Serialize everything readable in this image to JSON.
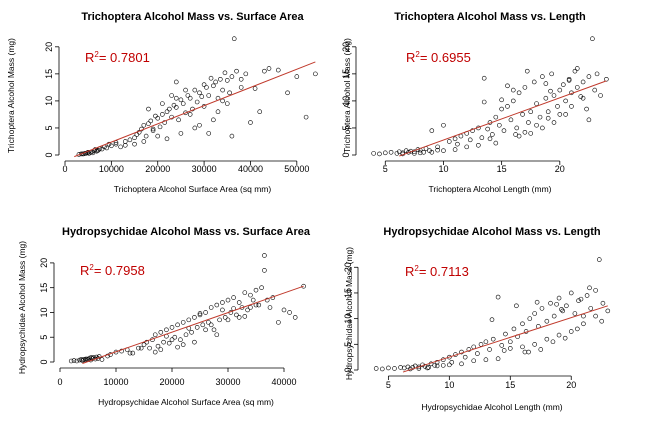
{
  "chart_data": [
    {
      "type": "scatter",
      "title": "Trichoptera Alcohol Mass vs. Surface Area",
      "xlabel": "Trichoptera Alcohol Surface Area (sq mm)",
      "ylabel": "Trichoptera Alcohol Mass (mg)",
      "xlim": [
        0,
        55000
      ],
      "ylim": [
        0,
        22
      ],
      "xticks": [
        0,
        10000,
        20000,
        30000,
        40000,
        50000
      ],
      "yticks": [
        0,
        5,
        10,
        15,
        20
      ],
      "annotation": {
        "prefix": "R",
        "sup": "2",
        "text": "= 0.7801",
        "color": "#c00000"
      },
      "fit_line": {
        "x": [
          2000,
          54000
        ],
        "y": [
          -0.3,
          17.2
        ],
        "color": "#c0392b"
      },
      "points": {
        "x": [
          3000,
          3500,
          4000,
          4300,
          4800,
          5200,
          5500,
          5800,
          6000,
          6300,
          6800,
          7200,
          4500,
          5000,
          6500,
          7500,
          8000,
          3800,
          9000,
          10000,
          11000,
          12000,
          13000,
          14000,
          15000,
          15500,
          16000,
          16500,
          17000,
          17500,
          18000,
          18500,
          19000,
          19500,
          20000,
          20500,
          21000,
          21500,
          22000,
          22500,
          23000,
          23500,
          24000,
          24500,
          25000,
          25500,
          26000,
          26500,
          27000,
          27500,
          28000,
          28500,
          29000,
          29500,
          30000,
          30500,
          31000,
          31500,
          32000,
          32500,
          33000,
          33500,
          34000,
          34500,
          35000,
          35500,
          36000,
          37000,
          38000,
          39000,
          40000,
          41000,
          42000,
          43000,
          44000,
          46000,
          48000,
          50000,
          52000,
          54000,
          36500,
          25000,
          22000,
          28000,
          30000,
          33000,
          18000,
          20000,
          24000,
          27000,
          31000,
          26000,
          21000,
          17000,
          29000,
          32000,
          35000,
          23000,
          19000,
          15000,
          13000,
          11000,
          9500,
          8500,
          7000,
          36000,
          34000,
          24000,
          38000
        ],
        "y": [
          0.1,
          0.2,
          0.2,
          0.3,
          0.4,
          0.3,
          0.5,
          0.6,
          0.4,
          0.8,
          0.7,
          0.9,
          0.3,
          0.5,
          1.0,
          1.2,
          1.1,
          0.2,
          1.3,
          1.7,
          2.0,
          1.5,
          2.5,
          2.8,
          3.2,
          3.8,
          4.2,
          4.8,
          5.5,
          3.5,
          5.8,
          6.3,
          4.5,
          7.2,
          6.8,
          5.2,
          7.5,
          6.0,
          8.0,
          8.5,
          7.0,
          9.2,
          8.8,
          6.5,
          10.2,
          9.5,
          7.8,
          11.0,
          10.5,
          8.5,
          12.0,
          9.8,
          11.5,
          10.8,
          13.0,
          12.5,
          11.0,
          14.2,
          12.8,
          13.5,
          10.5,
          14.0,
          12.0,
          15.2,
          13.8,
          11.5,
          14.5,
          15.5,
          12.5,
          15.0,
          6.0,
          12.3,
          8.0,
          15.5,
          16.0,
          15.7,
          11.5,
          14.5,
          7.0,
          15.0,
          21.5,
          4.0,
          3.0,
          5.0,
          9.0,
          8.0,
          8.5,
          3.5,
          10.5,
          7.5,
          4.0,
          12.0,
          9.5,
          2.5,
          5.5,
          6.5,
          9.5,
          11.0,
          4.8,
          2.0,
          1.8,
          2.3,
          2.0,
          1.5,
          0.8,
          3.5,
          10.0,
          13.5,
          14.0
        ]
      }
    },
    {
      "type": "scatter",
      "title": "Trichoptera Alcohol Mass vs. Length",
      "xlabel": "Trichoptera Alcohol Length (mm)",
      "ylabel": "Trichoptera Alcohol Mass (mg)",
      "xlim": [
        3,
        25
      ],
      "ylim": [
        0,
        22
      ],
      "xticks": [
        5,
        10,
        15,
        20
      ],
      "yticks": [
        0,
        5,
        10,
        15,
        20
      ],
      "annotation": {
        "prefix": "R",
        "sup": "2",
        "text": "= 0.6955",
        "color": "#c00000"
      },
      "fit_line": {
        "x": [
          6.2,
          24
        ],
        "y": [
          -0.2,
          13.7
        ],
        "color": "#c0392b"
      },
      "points": {
        "x": [
          4.0,
          4.5,
          5.0,
          5.5,
          6.0,
          6.2,
          6.5,
          6.8,
          7.0,
          7.2,
          7.5,
          7.8,
          8.0,
          8.3,
          8.5,
          8.8,
          9.0,
          9.5,
          10.0,
          10.5,
          11.0,
          11.2,
          11.5,
          12.0,
          12.3,
          12.5,
          13.0,
          13.3,
          13.5,
          13.8,
          14.0,
          14.2,
          14.5,
          14.8,
          15.0,
          15.2,
          15.5,
          15.8,
          16.0,
          16.3,
          16.5,
          16.8,
          17.0,
          17.3,
          17.5,
          17.8,
          18.0,
          18.3,
          18.5,
          18.8,
          19.0,
          19.3,
          19.5,
          19.8,
          20.0,
          20.3,
          20.5,
          20.8,
          21.0,
          21.3,
          21.5,
          21.8,
          22.0,
          22.3,
          22.5,
          22.8,
          23.0,
          23.5,
          24.0,
          13.5,
          15.0,
          16.0,
          17.0,
          18.0,
          19.0,
          20.0,
          21.0,
          22.0,
          14.0,
          16.5,
          17.5,
          18.5,
          19.5,
          20.5,
          12.0,
          11.0,
          10.0,
          9.0,
          15.5,
          17.2,
          18.8,
          21.5,
          16.2,
          14.5,
          13.0,
          19.2,
          20.8,
          22.5,
          23.2,
          7.5,
          8.0,
          6.5,
          9.5
        ],
        "y": [
          0.3,
          0.2,
          0.4,
          0.5,
          0.3,
          0.6,
          0.4,
          0.8,
          0.5,
          0.7,
          0.6,
          1.0,
          0.9,
          0.5,
          1.2,
          0.8,
          4.5,
          1.5,
          5.5,
          2.5,
          3.0,
          2.0,
          3.5,
          4.0,
          2.8,
          4.5,
          5.0,
          3.2,
          14.2,
          4.8,
          6.0,
          3.8,
          7.0,
          5.5,
          8.5,
          4.5,
          9.0,
          6.5,
          10.0,
          5.0,
          11.5,
          7.5,
          12.5,
          6.0,
          8.0,
          13.5,
          9.5,
          7.0,
          14.5,
          10.5,
          8.0,
          15.0,
          11.0,
          9.0,
          12.0,
          13.0,
          10.0,
          14.0,
          11.5,
          15.5,
          12.5,
          10.8,
          13.5,
          8.5,
          14.5,
          21.5,
          12.0,
          11.0,
          14.0,
          9.8,
          10.2,
          12.0,
          4.2,
          5.5,
          6.8,
          7.5,
          9.0,
          10.5,
          3.0,
          3.5,
          4.0,
          5.0,
          6.0,
          7.5,
          1.5,
          1.0,
          0.8,
          0.5,
          12.8,
          15.5,
          13.2,
          16.0,
          3.8,
          2.2,
          1.8,
          11.8,
          13.8,
          6.5,
          15.0,
          0.3,
          0.4,
          0.2,
          0.9
        ]
      }
    },
    {
      "type": "scatter",
      "title": "Hydropsychidae Alcohol Mass vs. Surface Area",
      "xlabel": "Hydropsychidae Alcohol Surface Area (sq mm)",
      "ylabel": "Hydropsychidae Alcohol Mass (mg)",
      "xlim": [
        0,
        45000
      ],
      "ylim": [
        0,
        22
      ],
      "xticks": [
        0,
        10000,
        20000,
        30000,
        40000
      ],
      "yticks": [
        0,
        5,
        10,
        15,
        20
      ],
      "annotation": {
        "prefix": "R",
        "sup": "2",
        "text": "= 0.7958",
        "color": "#c00000"
      },
      "fit_line": {
        "x": [
          4000,
          43500
        ],
        "y": [
          -0.3,
          15.3
        ],
        "color": "#c0392b"
      },
      "points": {
        "x": [
          2000,
          2500,
          3000,
          3500,
          4000,
          4200,
          4500,
          4800,
          5000,
          5300,
          5500,
          5800,
          6000,
          6300,
          6500,
          7000,
          3800,
          4600,
          5600,
          6800,
          7500,
          8500,
          9000,
          10000,
          11000,
          12000,
          13000,
          14000,
          15000,
          15500,
          16000,
          16500,
          17000,
          17500,
          18000,
          18500,
          19000,
          19500,
          20000,
          20500,
          21000,
          21500,
          22000,
          22500,
          23000,
          23500,
          24000,
          24500,
          25000,
          25500,
          26000,
          26500,
          27000,
          27500,
          28000,
          28500,
          29000,
          29500,
          30000,
          30500,
          31000,
          31500,
          32000,
          32500,
          33000,
          33500,
          34000,
          34500,
          35000,
          35500,
          36000,
          36500,
          37000,
          38000,
          40000,
          41000,
          42000,
          43500,
          36500,
          17000,
          18000,
          20000,
          22000,
          24000,
          26000,
          28000,
          30000,
          32000,
          34000,
          19000,
          21000,
          23000,
          25000,
          27000,
          29000,
          31000,
          33000,
          35000,
          14500,
          12500,
          37500,
          39000
        ],
        "y": [
          0.2,
          0.3,
          0.2,
          0.4,
          0.3,
          0.5,
          0.4,
          0.6,
          0.5,
          0.8,
          0.4,
          0.7,
          0.9,
          0.6,
          1.0,
          1.1,
          0.5,
          0.6,
          0.9,
          0.7,
          0.5,
          1.2,
          1.5,
          2.0,
          2.2,
          2.5,
          1.8,
          2.8,
          3.5,
          4.0,
          2.8,
          4.5,
          5.5,
          3.2,
          6.0,
          4.0,
          6.5,
          3.8,
          7.0,
          5.0,
          7.5,
          4.5,
          8.0,
          5.5,
          8.5,
          6.0,
          9.0,
          7.0,
          9.5,
          7.5,
          10.0,
          8.0,
          11.0,
          6.5,
          11.5,
          8.5,
          12.0,
          9.0,
          12.5,
          10.0,
          13.0,
          9.5,
          12.0,
          11.0,
          14.0,
          10.5,
          13.5,
          12.5,
          14.5,
          11.5,
          15.0,
          21.5,
          12.5,
          13.0,
          10.5,
          10.0,
          9.0,
          15.3,
          18.5,
          2.0,
          2.5,
          4.5,
          3.5,
          4.0,
          6.5,
          5.5,
          8.5,
          9.0,
          11.0,
          5.2,
          3.0,
          6.8,
          9.8,
          7.5,
          10.5,
          10.8,
          9.2,
          11.5,
          2.8,
          1.8,
          11.0,
          8.0
        ]
      }
    },
    {
      "type": "scatter",
      "title": "Hydropsychidae Alcohol Mass vs. Length",
      "xlabel": "Hydropsychidae Alcohol Length (mm)",
      "ylabel": "Hydropsychidae Alcohol Mass (mg)",
      "xlim": [
        3,
        24
      ],
      "ylim": [
        0,
        22
      ],
      "xticks": [
        5,
        10,
        15,
        20
      ],
      "yticks": [
        0,
        5,
        10,
        15,
        20
      ],
      "annotation": {
        "prefix": "R",
        "sup": "2",
        "text": "= 0.7113",
        "color": "#c00000"
      },
      "fit_line": {
        "x": [
          6.2,
          23
        ],
        "y": [
          -0.4,
          12.5
        ],
        "color": "#c0392b"
      },
      "points": {
        "x": [
          4.0,
          4.5,
          5.0,
          5.5,
          6.0,
          6.3,
          6.6,
          7.0,
          7.2,
          7.5,
          7.8,
          8.0,
          8.3,
          8.5,
          8.8,
          9.0,
          9.5,
          10.0,
          10.5,
          11.0,
          11.3,
          11.6,
          12.0,
          12.3,
          12.6,
          13.0,
          13.3,
          13.6,
          14.0,
          14.3,
          14.6,
          15.0,
          15.3,
          15.6,
          16.0,
          16.3,
          16.6,
          17.0,
          17.3,
          17.6,
          18.0,
          18.3,
          18.6,
          19.0,
          19.3,
          19.6,
          20.0,
          20.3,
          20.6,
          21.0,
          21.3,
          21.6,
          22.0,
          22.3,
          22.6,
          23.0,
          13.5,
          15.0,
          16.0,
          17.0,
          18.0,
          19.0,
          20.0,
          21.0,
          22.0,
          14.5,
          16.5,
          17.5,
          18.5,
          19.5,
          20.5,
          12.0,
          11.0,
          10.0,
          9.0,
          15.5,
          17.2,
          18.8,
          21.5,
          16.2,
          14.0,
          13.0,
          19.2,
          20.8,
          22.5,
          7.5,
          8.2,
          6.8,
          9.5,
          10.2
        ],
        "y": [
          0.3,
          0.2,
          0.4,
          0.3,
          0.5,
          0.4,
          0.6,
          0.5,
          0.8,
          0.6,
          1.0,
          0.7,
          0.5,
          1.2,
          0.9,
          1.5,
          2.0,
          2.5,
          3.0,
          3.5,
          2.5,
          4.0,
          4.5,
          3.2,
          5.0,
          5.5,
          4.0,
          6.0,
          14.2,
          4.8,
          7.0,
          5.5,
          8.0,
          6.5,
          9.0,
          7.5,
          10.0,
          11.0,
          8.5,
          12.0,
          9.5,
          13.0,
          10.5,
          14.0,
          11.5,
          12.5,
          15.0,
          11.0,
          13.5,
          10.5,
          14.5,
          12.0,
          15.5,
          21.5,
          13.0,
          11.5,
          9.8,
          4.2,
          4.5,
          5.0,
          6.0,
          6.8,
          7.5,
          9.0,
          10.5,
          3.8,
          3.5,
          4.0,
          5.5,
          6.2,
          8.0,
          1.8,
          1.2,
          1.0,
          0.8,
          12.5,
          13.2,
          12.8,
          16.0,
          3.5,
          2.2,
          2.0,
          11.8,
          13.8,
          9.5,
          0.3,
          0.4,
          0.2,
          0.9,
          1.5
        ]
      }
    }
  ]
}
